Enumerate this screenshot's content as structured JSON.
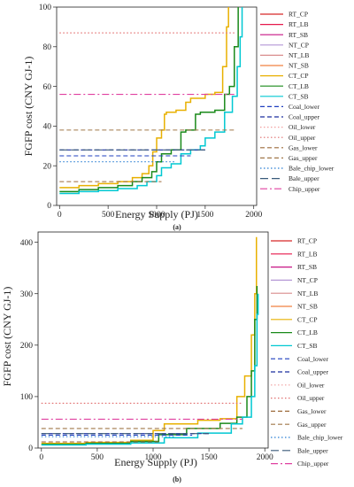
{
  "figure": {
    "panels": [
      {
        "caption": "(a)",
        "xlabel": "Energy Supply (PJ)",
        "ylabel": "FGFP cost (CNY GJ-1)",
        "xticks": [
          "0",
          "500",
          "1000",
          "1500",
          "2000"
        ],
        "yticks": [
          "0",
          "20",
          "40",
          "60",
          "80",
          "100"
        ]
      },
      {
        "caption": "(b)",
        "xlabel": "Energy Supply (PJ)",
        "ylabel": "FGFP cost (CNY GJ-1)",
        "xticks": [
          "0",
          "500",
          "1000",
          "1500",
          "2000"
        ],
        "yticks": [
          "0",
          "100",
          "200",
          "300",
          "400"
        ]
      }
    ]
  },
  "chart_data": [
    {
      "type": "line",
      "title": "",
      "caption": "(a)",
      "xlabel": "Energy Supply (PJ)",
      "ylabel": "FGFP cost (CNY GJ-1)",
      "xlim": [
        -30,
        2030
      ],
      "ylim": [
        0,
        100
      ],
      "grid": false,
      "legend_position": "right",
      "series": [
        {
          "name": "RT_CP",
          "color": "#d62728",
          "style": "solid",
          "points": []
        },
        {
          "name": "RT_LB",
          "color": "#e6194b",
          "style": "solid",
          "points": []
        },
        {
          "name": "RT_SB",
          "color": "#c71585",
          "style": "solid",
          "points": []
        },
        {
          "name": "NT_CP",
          "color": "#b497d6",
          "style": "solid",
          "points": []
        },
        {
          "name": "NT_LB",
          "color": "#d98c8c",
          "style": "solid",
          "points": []
        },
        {
          "name": "NT_SB",
          "color": "#f08040",
          "style": "solid",
          "points": []
        },
        {
          "name": "CT_CP",
          "color": "#e8b000",
          "style": "solid",
          "points": [
            [
              0,
              9
            ],
            [
              200,
              10
            ],
            [
              400,
              11
            ],
            [
              600,
              12
            ],
            [
              750,
              14
            ],
            [
              850,
              16
            ],
            [
              920,
              20
            ],
            [
              960,
              27
            ],
            [
              1000,
              34
            ],
            [
              1050,
              38
            ],
            [
              1080,
              46
            ],
            [
              1100,
              47
            ],
            [
              1200,
              48
            ],
            [
              1300,
              52
            ],
            [
              1350,
              54
            ],
            [
              1400,
              54
            ],
            [
              1500,
              56
            ],
            [
              1600,
              57
            ],
            [
              1680,
              70
            ],
            [
              1720,
              90
            ],
            [
              1740,
              100
            ]
          ]
        },
        {
          "name": "CT_LB",
          "color": "#1a8a1a",
          "style": "solid",
          "points": [
            [
              0,
              7
            ],
            [
              200,
              8
            ],
            [
              400,
              9
            ],
            [
              600,
              10
            ],
            [
              750,
              12
            ],
            [
              850,
              14
            ],
            [
              950,
              17
            ],
            [
              1000,
              22
            ],
            [
              1050,
              26
            ],
            [
              1150,
              28
            ],
            [
              1250,
              37
            ],
            [
              1300,
              38
            ],
            [
              1400,
              46
            ],
            [
              1450,
              47
            ],
            [
              1600,
              48
            ],
            [
              1700,
              56
            ],
            [
              1750,
              60
            ],
            [
              1800,
              80
            ],
            [
              1840,
              100
            ]
          ]
        },
        {
          "name": "CT_SB",
          "color": "#00c8d2",
          "style": "solid",
          "points": [
            [
              0,
              6
            ],
            [
              200,
              7
            ],
            [
              400,
              7.5
            ],
            [
              600,
              8.5
            ],
            [
              800,
              10
            ],
            [
              900,
              12
            ],
            [
              1000,
              15
            ],
            [
              1050,
              19
            ],
            [
              1150,
              21
            ],
            [
              1250,
              26
            ],
            [
              1350,
              28
            ],
            [
              1450,
              30
            ],
            [
              1500,
              34
            ],
            [
              1600,
              37
            ],
            [
              1700,
              47
            ],
            [
              1780,
              55
            ],
            [
              1830,
              70
            ],
            [
              1860,
              85
            ],
            [
              1880,
              100
            ]
          ]
        },
        {
          "name": "Coal_lower",
          "color": "#1f3fbf",
          "style": "dashed",
          "points": [
            [
              0,
              25
            ],
            [
              1350,
              25
            ]
          ]
        },
        {
          "name": "Coal_upper",
          "color": "#1a2f9f",
          "style": "dashed",
          "points": [
            [
              0,
              28
            ],
            [
              1500,
              28
            ]
          ]
        },
        {
          "name": "Oil_lower",
          "color": "#f2a0a0",
          "style": "dotted",
          "points": [
            [
              0,
              87
            ],
            [
              1800,
              87
            ]
          ]
        },
        {
          "name": "Oil_upper",
          "color": "#e07070",
          "style": "dotted",
          "points": [
            [
              0,
              87
            ],
            [
              1800,
              87
            ]
          ]
        },
        {
          "name": "Gas_lower",
          "color": "#9c6a3a",
          "style": "dashed",
          "points": [
            [
              0,
              12
            ],
            [
              1050,
              12
            ]
          ]
        },
        {
          "name": "Gas_upper",
          "color": "#a0784a",
          "style": "dashed",
          "points": [
            [
              0,
              38
            ],
            [
              1800,
              38
            ]
          ]
        },
        {
          "name": "Bale_chip_lower",
          "color": "#2a7fd4",
          "style": "dotted",
          "points": [
            [
              0,
              22
            ],
            [
              1200,
              22
            ]
          ]
        },
        {
          "name": "Bale_upper",
          "color": "#3a5a7a",
          "style": "longdash",
          "points": [
            [
              0,
              28
            ],
            [
              1500,
              28
            ]
          ]
        },
        {
          "name": "Chip_upper",
          "color": "#e040a0",
          "style": "dashdot",
          "points": [
            [
              0,
              56
            ],
            [
              1800,
              56
            ]
          ]
        }
      ]
    },
    {
      "type": "line",
      "title": "",
      "caption": "(b)",
      "xlabel": "Energy Supply (PJ)",
      "ylabel": "FGFP cost (CNY GJ-1)",
      "xlim": [
        -30,
        2030
      ],
      "ylim": [
        0,
        420
      ],
      "grid": false,
      "legend_position": "right",
      "series": [
        {
          "name": "RT_CP",
          "color": "#d62728",
          "style": "solid",
          "points": []
        },
        {
          "name": "RT_LB",
          "color": "#e6194b",
          "style": "solid",
          "points": []
        },
        {
          "name": "RT_SB",
          "color": "#c71585",
          "style": "solid",
          "points": []
        },
        {
          "name": "NT_CP",
          "color": "#b497d6",
          "style": "solid",
          "points": []
        },
        {
          "name": "NT_LB",
          "color": "#d98c8c",
          "style": "solid",
          "points": []
        },
        {
          "name": "NT_SB",
          "color": "#f08040",
          "style": "solid",
          "points": []
        },
        {
          "name": "CT_CP",
          "color": "#e8b000",
          "style": "solid",
          "points": [
            [
              0,
              9
            ],
            [
              400,
              11
            ],
            [
              800,
              15
            ],
            [
              1000,
              34
            ],
            [
              1100,
              47
            ],
            [
              1400,
              54
            ],
            [
              1600,
              57
            ],
            [
              1750,
              100
            ],
            [
              1820,
              140
            ],
            [
              1880,
              220
            ],
            [
              1910,
              300
            ],
            [
              1925,
              410
            ]
          ]
        },
        {
          "name": "CT_LB",
          "color": "#1a8a1a",
          "style": "solid",
          "points": [
            [
              0,
              7
            ],
            [
              400,
              9
            ],
            [
              800,
              13
            ],
            [
              1050,
              26
            ],
            [
              1300,
              38
            ],
            [
              1600,
              48
            ],
            [
              1750,
              60
            ],
            [
              1840,
              100
            ],
            [
              1880,
              150
            ],
            [
              1910,
              250
            ],
            [
              1930,
              315
            ]
          ]
        },
        {
          "name": "CT_SB",
          "color": "#00c8d2",
          "style": "solid",
          "points": [
            [
              0,
              6
            ],
            [
              400,
              7.5
            ],
            [
              800,
              10
            ],
            [
              1100,
              20
            ],
            [
              1400,
              29
            ],
            [
              1700,
              47
            ],
            [
              1800,
              60
            ],
            [
              1880,
              100
            ],
            [
              1910,
              160
            ],
            [
              1930,
              260
            ],
            [
              1940,
              300
            ]
          ]
        },
        {
          "name": "Coal_lower",
          "color": "#1f3fbf",
          "style": "dashed",
          "points": [
            [
              0,
              25
            ],
            [
              1350,
              25
            ]
          ]
        },
        {
          "name": "Coal_upper",
          "color": "#1a2f9f",
          "style": "dashed",
          "points": [
            [
              0,
              28
            ],
            [
              1500,
              28
            ]
          ]
        },
        {
          "name": "Oil_lower",
          "color": "#f2a0a0",
          "style": "dotted",
          "points": [
            [
              0,
              87
            ],
            [
              1800,
              87
            ]
          ]
        },
        {
          "name": "Oil_upper",
          "color": "#e07070",
          "style": "dotted",
          "points": [
            [
              0,
              87
            ],
            [
              1800,
              87
            ]
          ]
        },
        {
          "name": "Gas_lower",
          "color": "#9c6a3a",
          "style": "dashed",
          "points": [
            [
              0,
              12
            ],
            [
              1050,
              12
            ]
          ]
        },
        {
          "name": "Gas_upper",
          "color": "#a0784a",
          "style": "dashed",
          "points": [
            [
              0,
              38
            ],
            [
              1800,
              38
            ]
          ]
        },
        {
          "name": "Bale_chip_lower",
          "color": "#2a7fd4",
          "style": "dotted",
          "points": [
            [
              0,
              22
            ],
            [
              1200,
              22
            ]
          ]
        },
        {
          "name": "Bale_upper",
          "color": "#3a5a7a",
          "style": "longdash",
          "points": [
            [
              0,
              28
            ],
            [
              1500,
              28
            ]
          ]
        },
        {
          "name": "Chip_upper",
          "color": "#e040a0",
          "style": "dashdot",
          "points": [
            [
              0,
              56
            ],
            [
              1800,
              56
            ]
          ]
        }
      ]
    }
  ]
}
